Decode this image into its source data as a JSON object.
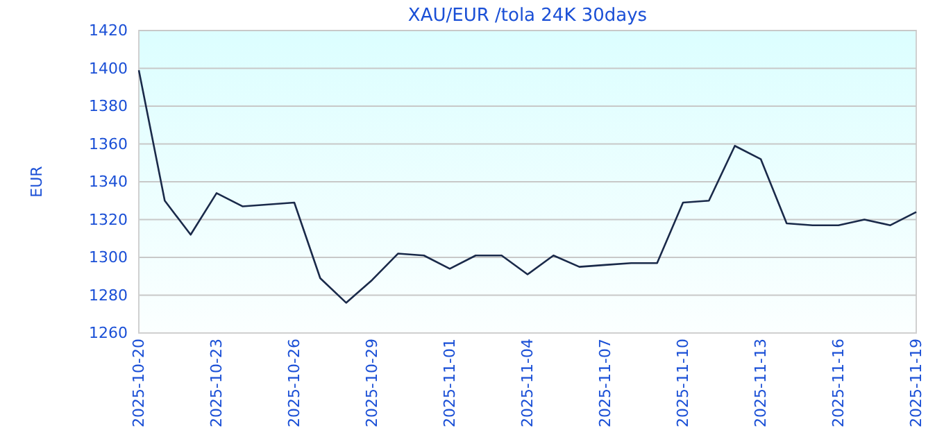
{
  "chart_data": {
    "type": "line",
    "title": "XAU/EUR /tola 24K 30days",
    "ylabel": "EUR",
    "x": [
      "2025-10-20",
      "2025-10-21",
      "2025-10-22",
      "2025-10-23",
      "2025-10-24",
      "2025-10-25",
      "2025-10-26",
      "2025-10-27",
      "2025-10-28",
      "2025-10-29",
      "2025-10-30",
      "2025-10-31",
      "2025-11-01",
      "2025-11-02",
      "2025-11-03",
      "2025-11-04",
      "2025-11-05",
      "2025-11-06",
      "2025-11-07",
      "2025-11-08",
      "2025-11-09",
      "2025-11-10",
      "2025-11-11",
      "2025-11-12",
      "2025-11-13",
      "2025-11-14",
      "2025-11-15",
      "2025-11-16",
      "2025-11-17",
      "2025-11-18",
      "2025-11-19"
    ],
    "series": [
      {
        "color": "#1a2a4a",
        "values": [
          1399,
          1330,
          1312,
          1334,
          1327,
          1328,
          1329,
          1289,
          1276,
          1288,
          1302,
          1301,
          1294,
          1301,
          1301,
          1291,
          1301,
          1295,
          1296,
          1297,
          1297,
          1329,
          1330,
          1359,
          1352,
          1318,
          1317,
          1317,
          1320,
          1317,
          1324
        ]
      }
    ],
    "xlim": [
      "2025-10-20",
      "2025-11-19"
    ],
    "xticks": [
      "2025-10-20",
      "2025-10-23",
      "2025-10-26",
      "2025-10-29",
      "2025-11-01",
      "2025-11-04",
      "2025-11-07",
      "2025-11-10",
      "2025-11-13",
      "2025-11-16",
      "2025-11-19"
    ],
    "ylim": [
      1260,
      1420
    ],
    "yticks": [
      1260,
      1280,
      1300,
      1320,
      1340,
      1360,
      1380,
      1400,
      1420
    ],
    "grid": "y",
    "marker": "none",
    "line_style": "solid"
  }
}
